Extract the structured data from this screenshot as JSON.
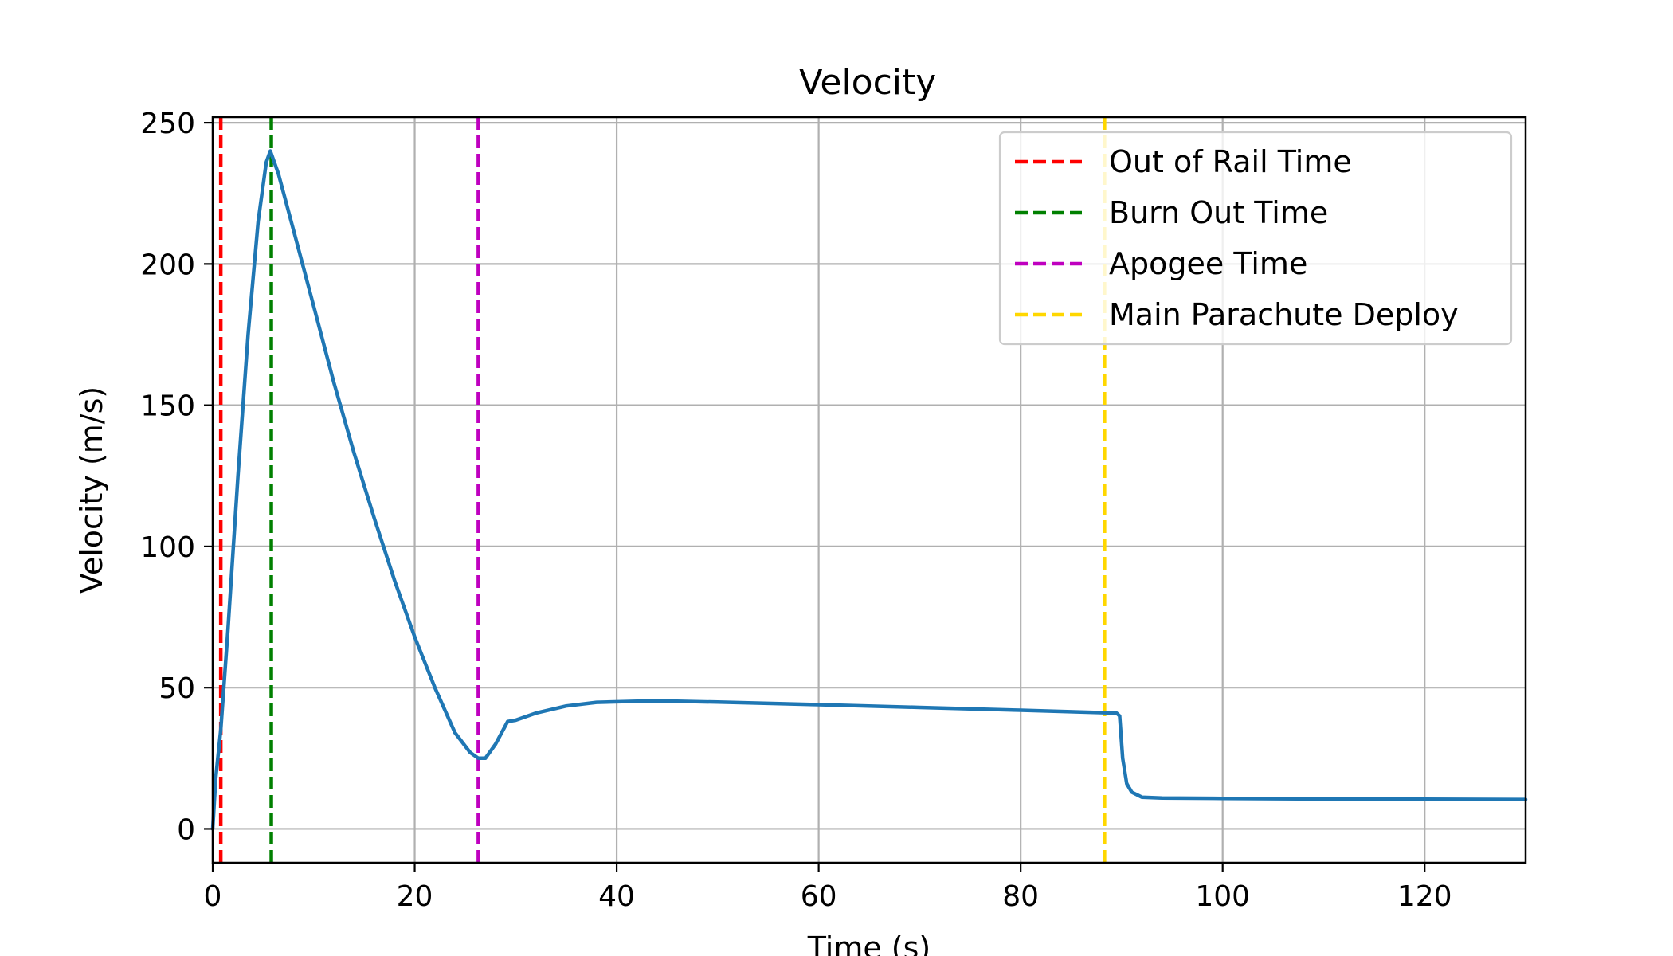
{
  "chart_data": {
    "type": "line",
    "title": "Velocity",
    "xlabel": "Time (s)",
    "ylabel": "Velocity (m/s)",
    "xlim": [
      0,
      130
    ],
    "ylim": [
      -12,
      252
    ],
    "xticks": [
      0,
      20,
      40,
      60,
      80,
      100,
      120
    ],
    "yticks": [
      0,
      50,
      100,
      150,
      200,
      250
    ],
    "grid": true,
    "legend_position": "top-right",
    "series": [
      {
        "values": [
          [
            0,
            0
          ],
          [
            0.3,
            18
          ],
          [
            0.8,
            35
          ],
          [
            1.5,
            70
          ],
          [
            2.5,
            125
          ],
          [
            3.5,
            175
          ],
          [
            4.5,
            215
          ],
          [
            5.3,
            236
          ],
          [
            5.7,
            240
          ],
          [
            6.5,
            232
          ],
          [
            8,
            212
          ],
          [
            10,
            185
          ],
          [
            12,
            158
          ],
          [
            14,
            133
          ],
          [
            16,
            110
          ],
          [
            18,
            88
          ],
          [
            20,
            68
          ],
          [
            22,
            50
          ],
          [
            24,
            34
          ],
          [
            25.5,
            27
          ],
          [
            26.3,
            25
          ],
          [
            27,
            25
          ],
          [
            28,
            30
          ],
          [
            29.2,
            38
          ],
          [
            30,
            38.5
          ],
          [
            32,
            41
          ],
          [
            35,
            43.5
          ],
          [
            38,
            44.8
          ],
          [
            42,
            45.2
          ],
          [
            46,
            45.2
          ],
          [
            50,
            44.9
          ],
          [
            60,
            44
          ],
          [
            70,
            43
          ],
          [
            80,
            42
          ],
          [
            89.5,
            41
          ],
          [
            89.8,
            40
          ],
          [
            90.1,
            25
          ],
          [
            90.5,
            16
          ],
          [
            91,
            13
          ],
          [
            92,
            11.2
          ],
          [
            94,
            10.9
          ],
          [
            100,
            10.8
          ],
          [
            110,
            10.6
          ],
          [
            120,
            10.5
          ],
          [
            130,
            10.4
          ]
        ],
        "color": "#1f77b4"
      }
    ],
    "events": [
      {
        "name": "Out of Rail Time",
        "x": 0.8,
        "color": "#ff0000"
      },
      {
        "name": "Burn Out Time",
        "x": 5.8,
        "color": "#008000"
      },
      {
        "name": "Apogee Time",
        "x": 26.3,
        "color": "#bf00bf"
      },
      {
        "name": "Main Parachute Deploy",
        "x": 88.3,
        "color": "#ffd700"
      }
    ],
    "colors": {
      "line": "#1f77b4",
      "grid": "#b0b0b0",
      "axes": "#000000",
      "legend_border": "#cccccc"
    }
  }
}
